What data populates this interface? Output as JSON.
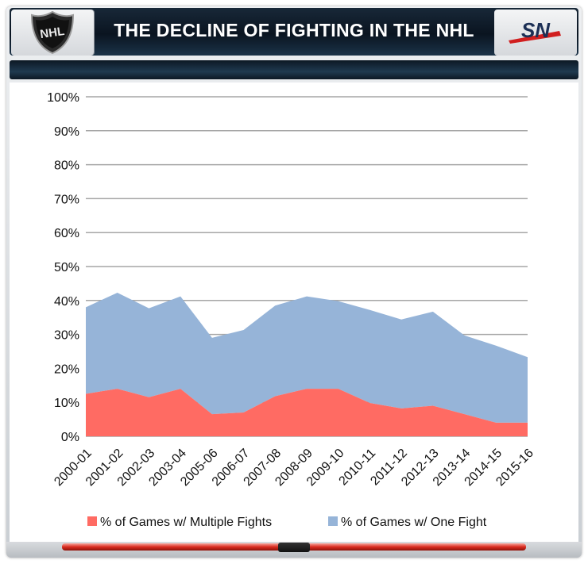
{
  "header": {
    "title": "THE DECLINE OF FIGHTING IN THE NHL",
    "left_logo": "NHL",
    "right_logo": "SN"
  },
  "colors": {
    "multiple_fights": "#ff6b63",
    "one_fight": "#96b4d8",
    "grid": "#a6a6a6",
    "header_bg": "#0d1826"
  },
  "chart_data": {
    "type": "area",
    "stacked": true,
    "x": [
      "2000-01",
      "2001-02",
      "2002-03",
      "2003-04",
      "2005-06",
      "2006-07",
      "2007-08",
      "2008-09",
      "2009-10",
      "2010-11",
      "2011-12",
      "2012-13",
      "2013-14",
      "2014-15",
      "2015-16"
    ],
    "series": [
      {
        "name": "% of Games w/ Multiple Fights",
        "color": "#ff6b63",
        "values": [
          12.5,
          14.0,
          11.5,
          14.0,
          6.5,
          7.0,
          11.8,
          14.0,
          14.0,
          9.8,
          8.2,
          9.0,
          6.5,
          4.0,
          4.0
        ]
      },
      {
        "name": "% of Games w/ One Fight",
        "color": "#96b4d8",
        "values": [
          25.5,
          28.3,
          26.2,
          27.2,
          22.5,
          24.3,
          26.7,
          27.2,
          25.8,
          27.4,
          26.2,
          27.7,
          23.2,
          22.7,
          19.3
        ]
      }
    ],
    "ylim": [
      0,
      100
    ],
    "yticks": [
      "0%",
      "10%",
      "20%",
      "30%",
      "40%",
      "50%",
      "60%",
      "70%",
      "80%",
      "90%",
      "100%"
    ],
    "grid": true,
    "legend": "bottom"
  }
}
